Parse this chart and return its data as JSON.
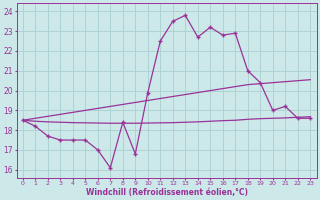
{
  "xlabel": "Windchill (Refroidissement éolien,°C)",
  "bg_color": "#cce8e8",
  "grid_color": "#aad0d0",
  "line_color": "#993399",
  "x_values": [
    0,
    1,
    2,
    3,
    4,
    5,
    6,
    7,
    8,
    9,
    10,
    11,
    12,
    13,
    14,
    15,
    16,
    17,
    18,
    19,
    20,
    21,
    22,
    23
  ],
  "main_y": [
    18.5,
    18.2,
    17.7,
    17.5,
    17.5,
    17.5,
    17.0,
    16.1,
    18.4,
    16.8,
    19.9,
    22.5,
    23.5,
    23.8,
    22.7,
    23.2,
    22.8,
    22.9,
    21.0,
    20.4,
    19.0,
    19.2,
    18.6,
    18.6
  ],
  "trend_high_y": [
    18.5,
    18.6,
    18.7,
    18.8,
    18.9,
    19.0,
    19.1,
    19.2,
    19.3,
    19.4,
    19.5,
    19.6,
    19.7,
    19.8,
    19.9,
    20.0,
    20.1,
    20.2,
    20.3,
    20.35,
    20.4,
    20.45,
    20.5,
    20.55
  ],
  "trend_low_y": [
    18.5,
    18.45,
    18.42,
    18.4,
    18.38,
    18.37,
    18.36,
    18.35,
    18.35,
    18.35,
    18.36,
    18.37,
    18.38,
    18.4,
    18.42,
    18.45,
    18.48,
    18.5,
    18.55,
    18.58,
    18.6,
    18.62,
    18.65,
    18.68
  ],
  "ylim": [
    15.6,
    24.4
  ],
  "yticks": [
    16,
    17,
    18,
    19,
    20,
    21,
    22,
    23,
    24
  ],
  "xlim": [
    -0.5,
    23.5
  ],
  "xtick_labels": [
    "0",
    "1",
    "2",
    "3",
    "4",
    "5",
    "6",
    "7",
    "8",
    "9",
    "10",
    "11",
    "12",
    "13",
    "14",
    "15",
    "16",
    "17",
    "18",
    "19",
    "20",
    "21",
    "22",
    "23"
  ]
}
